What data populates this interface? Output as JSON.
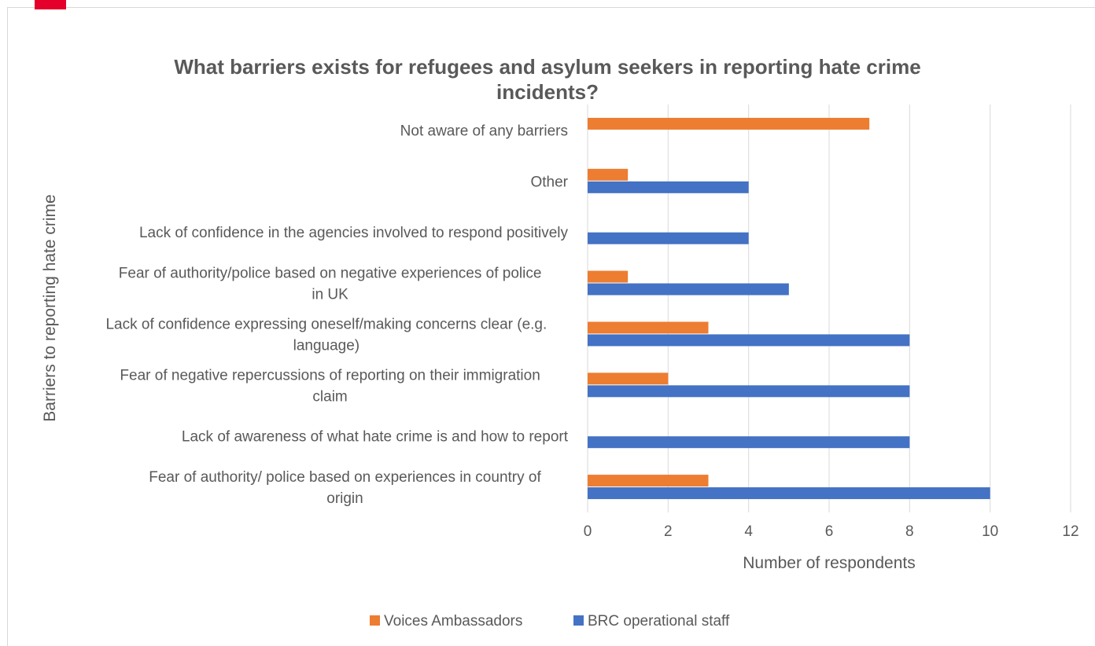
{
  "chart_data": {
    "type": "bar",
    "orientation": "horizontal",
    "title": "What barriers exists for refugees and asylum seekers in reporting hate crime incidents?",
    "xlabel": "Number of respondents",
    "ylabel": "Barriers to reporting hate crime",
    "xlim": [
      0,
      12
    ],
    "x_ticks": [
      "0",
      "2",
      "4",
      "6",
      "8",
      "10",
      "12"
    ],
    "grid": true,
    "legend_position": "bottom",
    "categories": [
      "Not aware  of any barriers",
      "Other",
      "Lack of confidence in the agencies involved to respond positively",
      "Fear of authority/police based on negative experiences of police in UK",
      "Lack of confidence expressing oneself/making concerns clear (e.g. language)",
      "Fear of negative repercussions of reporting on their immigration claim",
      "Lack of awareness of what hate crime is and how to report",
      "Fear of authority/ police based on experiences in country of origin"
    ],
    "category_lines": [
      [
        "Not aware  of any barriers"
      ],
      [
        "Other"
      ],
      [
        "Lack of confidence in the agencies involved to respond positively"
      ],
      [
        "Fear of authority/police based on negative experiences of police",
        "in UK"
      ],
      [
        "Lack of confidence expressing oneself/making concerns clear (e.g.",
        "language)"
      ],
      [
        "Fear of negative repercussions of reporting on their immigration",
        "claim"
      ],
      [
        "Lack of awareness of what hate crime is and how to report"
      ],
      [
        "Fear of authority/ police based on experiences in country of",
        "origin"
      ]
    ],
    "series": [
      {
        "name": "Voices Ambassadors",
        "color": "#ed7d31",
        "values": [
          7,
          1,
          0,
          1,
          3,
          2,
          0,
          3
        ]
      },
      {
        "name": "BRC operational staff",
        "color": "#4472c4",
        "values": [
          0,
          4,
          4,
          5,
          8,
          8,
          8,
          10
        ]
      }
    ]
  }
}
